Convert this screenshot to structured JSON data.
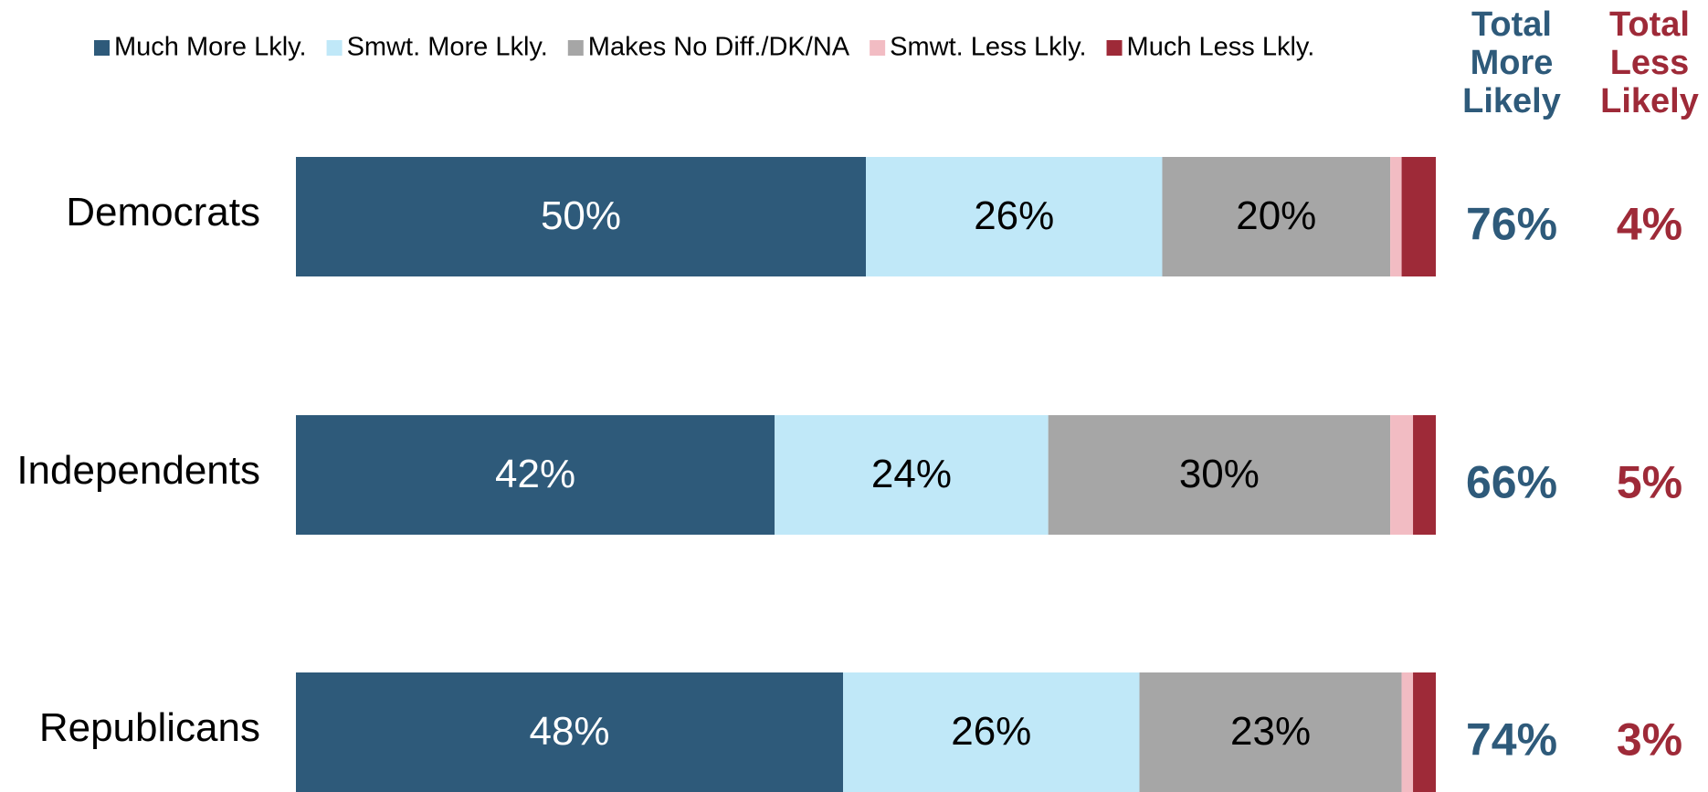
{
  "chart_data": {
    "type": "stacked-bar-horizontal",
    "categories": [
      "Democrats",
      "Independents",
      "Republicans"
    ],
    "xlim": [
      0,
      100
    ],
    "legend": "top",
    "series": [
      {
        "name": "Much More Lkly.",
        "color": "#2e5a7a",
        "values": [
          50,
          42,
          48
        ],
        "value_labels": [
          "50%",
          "42%",
          "48%"
        ]
      },
      {
        "name": "Smwt. More Lkly.",
        "color": "#c0e8f8",
        "values": [
          26,
          24,
          26
        ],
        "value_labels": [
          "26%",
          "24%",
          "26%"
        ]
      },
      {
        "name": "Makes No Diff./DK/NA",
        "color": "#a6a6a6",
        "values": [
          20,
          30,
          23
        ],
        "value_labels": [
          "20%",
          "30%",
          "23%"
        ]
      },
      {
        "name": "Smwt. Less Lkly.",
        "color": "#f2bcc3",
        "values": [
          1,
          2,
          1
        ],
        "value_labels": [
          null,
          null,
          null
        ]
      },
      {
        "name": "Much Less Lkly.",
        "color": "#9e2a38",
        "values": [
          3,
          2,
          2
        ],
        "value_labels": [
          null,
          null,
          null
        ]
      }
    ],
    "totals": [
      {
        "name": "Total More Likely",
        "color": "#2e5a7a",
        "values": [
          76,
          66,
          74
        ],
        "value_labels": [
          "76%",
          "66%",
          "74%"
        ]
      },
      {
        "name": "Total Less Likely",
        "color": "#9e2a38",
        "values": [
          4,
          5,
          3
        ],
        "value_labels": [
          "4%",
          "5%",
          "3%"
        ]
      }
    ]
  }
}
